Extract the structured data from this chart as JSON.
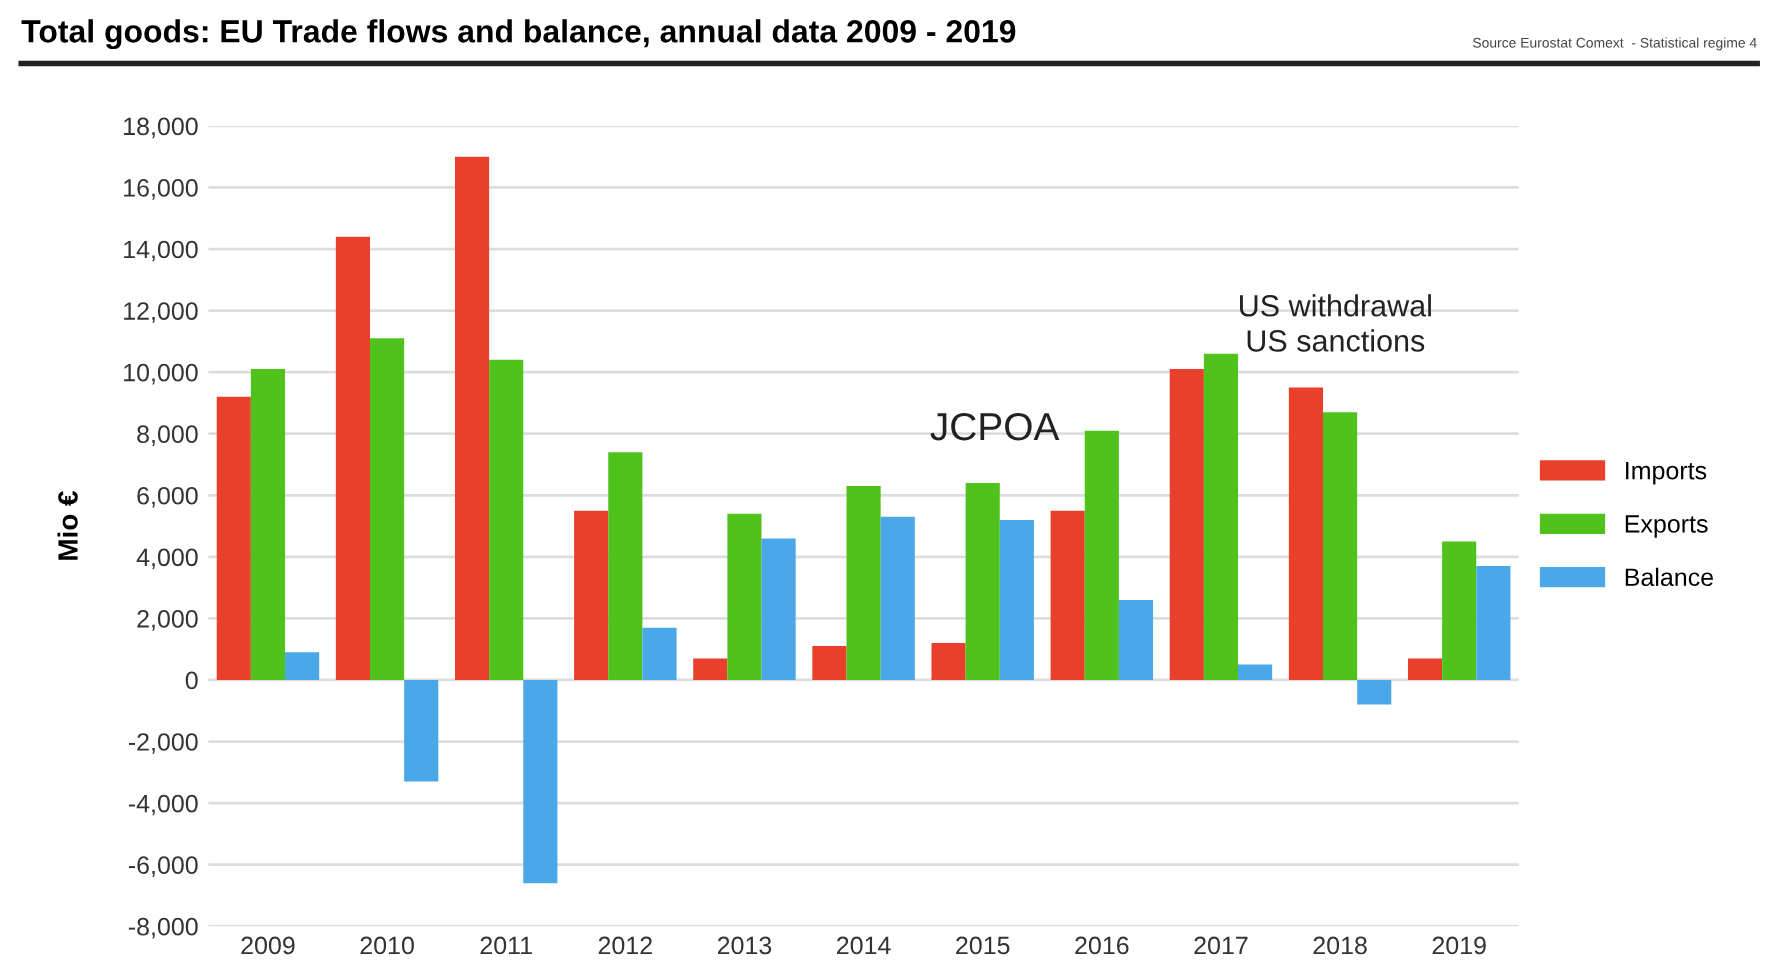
{
  "chart_data": {
    "type": "bar",
    "title": "Total goods: EU Trade flows and balance, annual data 2009 - 2019",
    "ylabel": "Mio €",
    "categories": [
      "2009",
      "2010",
      "2011",
      "2012",
      "2013",
      "2014",
      "2015",
      "2016",
      "2017",
      "2018",
      "2019"
    ],
    "series": [
      {
        "name": "Imports",
        "color": "#e8402a",
        "values": [
          9200,
          14400,
          17000,
          5500,
          700,
          1100,
          1200,
          5500,
          10100,
          9500,
          700
        ]
      },
      {
        "name": "Exports",
        "color": "#4fc21c",
        "values": [
          10100,
          11100,
          10400,
          7400,
          5400,
          6300,
          6400,
          8100,
          10600,
          8700,
          4500
        ]
      },
      {
        "name": "Balance",
        "color": "#4aa8e8",
        "values": [
          900,
          -3300,
          -6600,
          1700,
          4600,
          5300,
          5200,
          2600,
          500,
          -800,
          3700
        ]
      }
    ],
    "ylim": [
      -8000,
      18000
    ],
    "yticks": [
      {
        "value": -8000,
        "label": "-8,000"
      },
      {
        "value": -6000,
        "label": "-6,000"
      },
      {
        "value": -4000,
        "label": "-4,000"
      },
      {
        "value": -2000,
        "label": "-2,000"
      },
      0,
      {
        "value": 2000,
        "label": "2,000"
      },
      {
        "value": 4000,
        "label": "4,000"
      },
      {
        "value": 6000,
        "label": "6,000"
      },
      {
        "value": 8000,
        "label": "8,000"
      },
      {
        "value": 10000,
        "label": "10,000"
      },
      {
        "value": 12000,
        "label": "12,000"
      },
      {
        "value": 14000,
        "label": "14,000"
      },
      {
        "value": 16000,
        "label": "16,000"
      },
      {
        "value": 18000,
        "label": "18,000"
      }
    ],
    "annotations": [
      "JCPOA",
      "US withdrawal\nUS sanctions",
      "Source Eurostat Comext  - Statistical regime 4"
    ],
    "grid": "y",
    "legend": "right"
  }
}
